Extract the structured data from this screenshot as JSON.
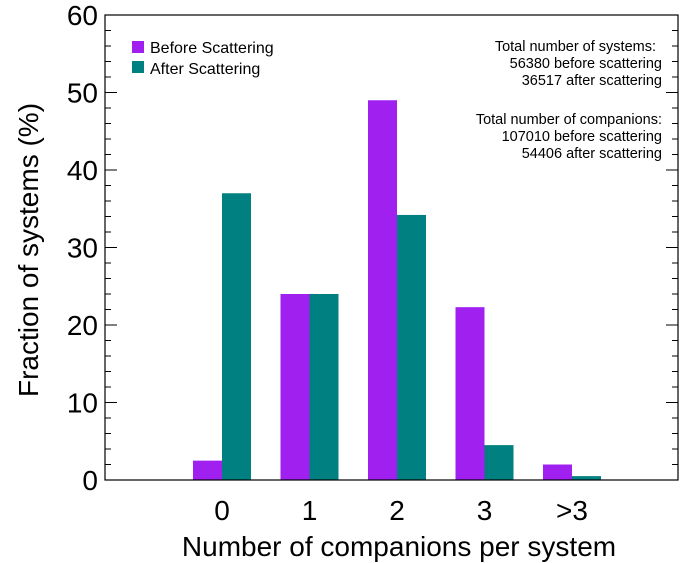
{
  "chart_data": {
    "type": "bar",
    "categories": [
      "0",
      "1",
      "2",
      "3",
      ">3"
    ],
    "series": [
      {
        "name": "Before Scattering",
        "color": "#a020f0",
        "values": [
          2.5,
          24,
          49,
          22.3,
          2
        ]
      },
      {
        "name": "After Scattering",
        "color": "#008080",
        "values": [
          37,
          24,
          34.2,
          4.5,
          0.5
        ]
      }
    ],
    "xlabel": "Number of companions per system",
    "ylabel": "Fraction of systems (%)",
    "ylim": [
      0,
      60
    ],
    "yticks": [
      0,
      10,
      20,
      30,
      40,
      50,
      60
    ],
    "grid": false,
    "legend_position": "top-left",
    "annotations": [
      "Total number of systems:",
      "56380 before scattering",
      "36517 after  scattering",
      "Total number of companions:",
      "107010 before scattering",
      "54406 after scattering"
    ]
  }
}
